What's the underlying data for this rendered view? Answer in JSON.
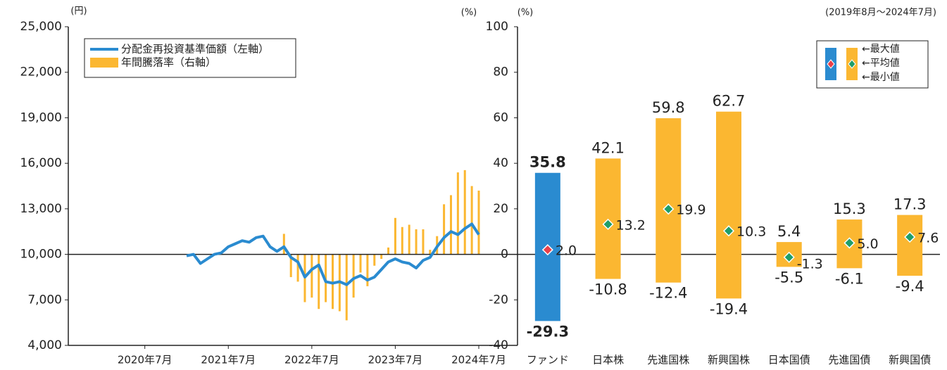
{
  "chart_data": [
    {
      "type": "combo",
      "ylabel": "(円)",
      "y2label": "(%)",
      "xlim": [
        "2019-08",
        "2024-07"
      ],
      "xticks": [
        {
          "value": "2020-07",
          "label": "2020年7月"
        },
        {
          "value": "2021-07",
          "label": "2021年7月"
        },
        {
          "value": "2022-07",
          "label": "2022年7月"
        },
        {
          "value": "2023-07",
          "label": "2023年7月"
        },
        {
          "value": "2024-07",
          "label": "2024年7月"
        }
      ],
      "ylim": [
        4000,
        25000
      ],
      "yticks": [
        {
          "value": 4000,
          "label": "4,000"
        },
        {
          "value": 7000,
          "label": "7,000"
        },
        {
          "value": 10000,
          "label": "10,000"
        },
        {
          "value": 13000,
          "label": "13,000"
        },
        {
          "value": 16000,
          "label": "16,000"
        },
        {
          "value": 19000,
          "label": "19,000"
        },
        {
          "value": 22000,
          "label": "22,000"
        },
        {
          "value": 25000,
          "label": "25,000"
        }
      ],
      "y2lim": [
        -40,
        100
      ],
      "series": [
        {
          "name": "分配金再投資基準価額（左軸）",
          "kind": "line",
          "color": "#2a8bd0",
          "x": [
            "2021-01",
            "2021-02",
            "2021-03",
            "2021-04",
            "2021-05",
            "2021-06",
            "2021-07",
            "2021-08",
            "2021-09",
            "2021-10",
            "2021-11",
            "2021-12",
            "2022-01",
            "2022-02",
            "2022-03",
            "2022-04",
            "2022-05",
            "2022-06",
            "2022-07",
            "2022-08",
            "2022-09",
            "2022-10",
            "2022-11",
            "2022-12",
            "2023-01",
            "2023-02",
            "2023-03",
            "2023-04",
            "2023-05",
            "2023-06",
            "2023-07",
            "2023-08",
            "2023-09",
            "2023-10",
            "2023-11",
            "2023-12",
            "2024-01",
            "2024-02",
            "2024-03",
            "2024-04",
            "2024-05",
            "2024-06",
            "2024-07"
          ],
          "values": [
            9900,
            10000,
            9400,
            9700,
            10000,
            10100,
            10500,
            10700,
            10900,
            10800,
            11100,
            11200,
            10500,
            10200,
            10500,
            9800,
            9500,
            8500,
            9000,
            9300,
            8200,
            8100,
            8200,
            8000,
            8400,
            8600,
            8300,
            8500,
            9000,
            9500,
            9700,
            9500,
            9400,
            9100,
            9600,
            9800,
            10500,
            11100,
            11500,
            11300,
            11700,
            12000,
            11300
          ]
        },
        {
          "name": "年間騰落率（右軸）",
          "kind": "bar",
          "axis": "y2",
          "color": "#fbb731",
          "x": [
            "2022-03",
            "2022-04",
            "2022-05",
            "2022-06",
            "2022-07",
            "2022-08",
            "2022-09",
            "2022-10",
            "2022-11",
            "2022-12",
            "2023-01",
            "2023-02",
            "2023-03",
            "2023-04",
            "2023-05",
            "2023-06",
            "2023-07",
            "2023-08",
            "2023-09",
            "2023-10",
            "2023-11",
            "2023-12",
            "2024-01",
            "2024-02",
            "2024-03",
            "2024-04",
            "2024-05",
            "2024-06",
            "2024-07"
          ],
          "values": [
            9,
            -10,
            -12,
            -21,
            -19,
            -24,
            -21,
            -24,
            -25,
            -29,
            -19,
            -8,
            -14,
            -5,
            -2,
            3,
            16,
            12,
            13,
            11,
            11,
            2,
            8,
            22,
            26,
            36,
            37,
            30,
            28
          ]
        }
      ]
    },
    {
      "type": "range",
      "ylabel": "(%)",
      "subtitle": "(2019年8月～2024年7月)",
      "ylim": [
        -40,
        100
      ],
      "yticks": [
        -40,
        -20,
        0,
        20,
        40,
        60,
        80,
        100
      ],
      "categories": [
        "ファンド",
        "日本株",
        "先進国株",
        "新興国株",
        "日本国債",
        "先進国債",
        "新興国債"
      ],
      "max": [
        35.8,
        42.1,
        59.8,
        62.7,
        5.4,
        15.3,
        17.3
      ],
      "max_labels": [
        "35.8",
        "42.1",
        "59.8",
        "62.7",
        "5.4",
        "15.3",
        "17.3"
      ],
      "mean": [
        2.0,
        13.2,
        19.9,
        10.3,
        -1.3,
        5.0,
        7.6
      ],
      "mean_labels": [
        "2.0",
        "13.2",
        "19.9",
        "10.3",
        "-1.3",
        "5.0",
        "7.6"
      ],
      "min": [
        -29.3,
        -10.8,
        -12.4,
        -19.4,
        -5.5,
        -6.1,
        -9.4
      ],
      "min_labels": [
        "-29.3",
        "-10.8",
        "-12.4",
        "-19.4",
        "-5.5",
        "-6.1",
        "-9.4"
      ],
      "bar_colors": [
        "#2a8bd0",
        "#fbb731",
        "#fbb731",
        "#fbb731",
        "#fbb731",
        "#fbb731",
        "#fbb731"
      ],
      "marker_colors": [
        "#e8404a",
        "#1e9e6a",
        "#1e9e6a",
        "#1e9e6a",
        "#1e9e6a",
        "#1e9e6a",
        "#1e9e6a"
      ],
      "label_colors": [
        "#2a8bd0",
        "#222222",
        "#222222",
        "#222222",
        "#222222",
        "#222222",
        "#222222"
      ],
      "legend": [
        "←最大値",
        "←平均値",
        "←最小値"
      ]
    }
  ]
}
